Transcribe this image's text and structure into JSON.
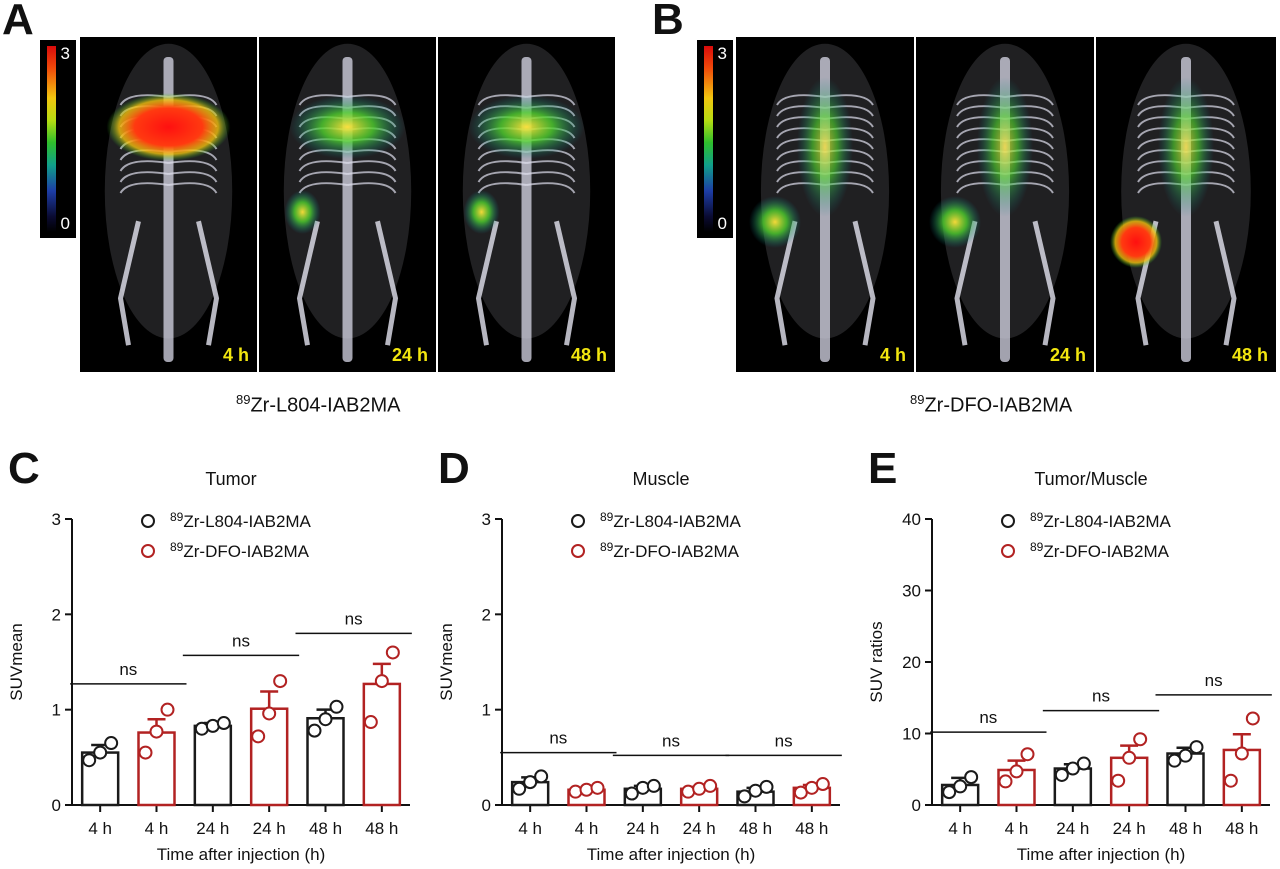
{
  "panels": {
    "A": {
      "letter": "A",
      "compound_sup": "89",
      "compound_main": "Zr-L804-IAB2MA",
      "colorbar": {
        "max": "3",
        "min": "0"
      },
      "timepoints": [
        "4 h",
        "24 h",
        "48 h"
      ]
    },
    "B": {
      "letter": "B",
      "compound_sup": "89",
      "compound_main": "Zr-DFO-IAB2MA",
      "colorbar": {
        "max": "3",
        "min": "0"
      },
      "timepoints": [
        "4 h",
        "24 h",
        "48 h"
      ]
    }
  },
  "colors": {
    "l804": "#1a1a1a",
    "dfo": "#b22222",
    "tp_label": "#f2e60f"
  },
  "chart_data": [
    {
      "letter": "C",
      "type": "bar",
      "title": "Tumor",
      "ylabel": "SUVmean",
      "xlabel": "Time after injection (h)",
      "ylim": [
        0,
        3
      ],
      "yticks": [
        "0",
        "1",
        "2",
        "3"
      ],
      "categories": [
        "4 h",
        "4 h",
        "24 h",
        "24 h",
        "48 h",
        "48 h"
      ],
      "bar_series": [
        "L804",
        "DFO",
        "L804",
        "DFO",
        "L804",
        "DFO"
      ],
      "values": [
        0.55,
        0.76,
        0.83,
        1.01,
        0.91,
        1.27
      ],
      "errors": [
        0.08,
        0.14,
        0.03,
        0.18,
        0.09,
        0.21
      ],
      "points": [
        [
          0.47,
          0.55,
          0.65
        ],
        [
          0.55,
          0.77,
          1.0
        ],
        [
          0.8,
          0.83,
          0.86
        ],
        [
          0.72,
          0.96,
          1.3
        ],
        [
          0.78,
          0.9,
          1.03
        ],
        [
          0.87,
          1.3,
          1.6
        ]
      ],
      "legend": [
        {
          "sup": "89",
          "name": "Zr-L804-IAB2MA",
          "color": "#1a1a1a"
        },
        {
          "sup": "89",
          "name": "Zr-DFO-IAB2MA",
          "color": "#b22222"
        }
      ],
      "sig": [
        {
          "label": "ns",
          "from": 0,
          "to": 1,
          "y": 1.27
        },
        {
          "label": "ns",
          "from": 2,
          "to": 3,
          "y": 1.57
        },
        {
          "label": "ns",
          "from": 4,
          "to": 5,
          "y": 1.8
        }
      ]
    },
    {
      "letter": "D",
      "type": "bar",
      "title": "Muscle",
      "ylabel": "SUVmean",
      "xlabel": "Time after injection (h)",
      "ylim": [
        0,
        3
      ],
      "yticks": [
        "0",
        "1",
        "2",
        "3"
      ],
      "categories": [
        "4 h",
        "4 h",
        "24 h",
        "24 h",
        "48 h",
        "48 h"
      ],
      "bar_series": [
        "L804",
        "DFO",
        "L804",
        "DFO",
        "L804",
        "DFO"
      ],
      "values": [
        0.24,
        0.16,
        0.17,
        0.17,
        0.14,
        0.18
      ],
      "errors": [
        0.05,
        0.02,
        0.03,
        0.02,
        0.04,
        0.03
      ],
      "points": [
        [
          0.17,
          0.24,
          0.3
        ],
        [
          0.14,
          0.16,
          0.18
        ],
        [
          0.12,
          0.18,
          0.2
        ],
        [
          0.14,
          0.17,
          0.2
        ],
        [
          0.09,
          0.15,
          0.19
        ],
        [
          0.13,
          0.18,
          0.22
        ]
      ],
      "legend": [
        {
          "sup": "89",
          "name": "Zr-L804-IAB2MA",
          "color": "#1a1a1a"
        },
        {
          "sup": "89",
          "name": "Zr-DFO-IAB2MA",
          "color": "#b22222"
        }
      ],
      "sig": [
        {
          "label": "ns",
          "from": 0,
          "to": 1,
          "y": 0.55
        },
        {
          "label": "ns",
          "from": 2,
          "to": 3,
          "y": 0.52
        },
        {
          "label": "ns",
          "from": 4,
          "to": 5,
          "y": 0.52
        }
      ]
    },
    {
      "letter": "E",
      "type": "bar",
      "title": "Tumor/Muscle",
      "ylabel": "SUV ratios",
      "xlabel": "Time after injection (h)",
      "ylim": [
        0,
        40
      ],
      "yticks": [
        "0",
        "10",
        "20",
        "30",
        "40"
      ],
      "categories": [
        "4 h",
        "4 h",
        "24 h",
        "24 h",
        "48 h",
        "48 h"
      ],
      "bar_series": [
        "L804",
        "DFO",
        "L804",
        "DFO",
        "L804",
        "DFO"
      ],
      "values": [
        2.8,
        4.9,
        5.1,
        6.6,
        7.2,
        7.7
      ],
      "errors": [
        1.0,
        1.3,
        0.6,
        1.7,
        0.8,
        2.2
      ],
      "points": [
        [
          1.8,
          2.6,
          3.9
        ],
        [
          3.3,
          4.7,
          7.1
        ],
        [
          4.2,
          5.1,
          5.8
        ],
        [
          3.4,
          6.6,
          9.2
        ],
        [
          6.2,
          6.9,
          8.1
        ],
        [
          3.4,
          7.2,
          12.1
        ]
      ],
      "legend": [
        {
          "sup": "89",
          "name": "Zr-L804-IAB2MA",
          "color": "#1a1a1a"
        },
        {
          "sup": "89",
          "name": "Zr-DFO-IAB2MA",
          "color": "#b22222"
        }
      ],
      "sig": [
        {
          "label": "ns",
          "from": 0,
          "to": 1,
          "y": 10.2
        },
        {
          "label": "ns",
          "from": 2,
          "to": 3,
          "y": 13.2
        },
        {
          "label": "ns",
          "from": 4,
          "to": 5,
          "y": 15.4
        }
      ]
    }
  ]
}
